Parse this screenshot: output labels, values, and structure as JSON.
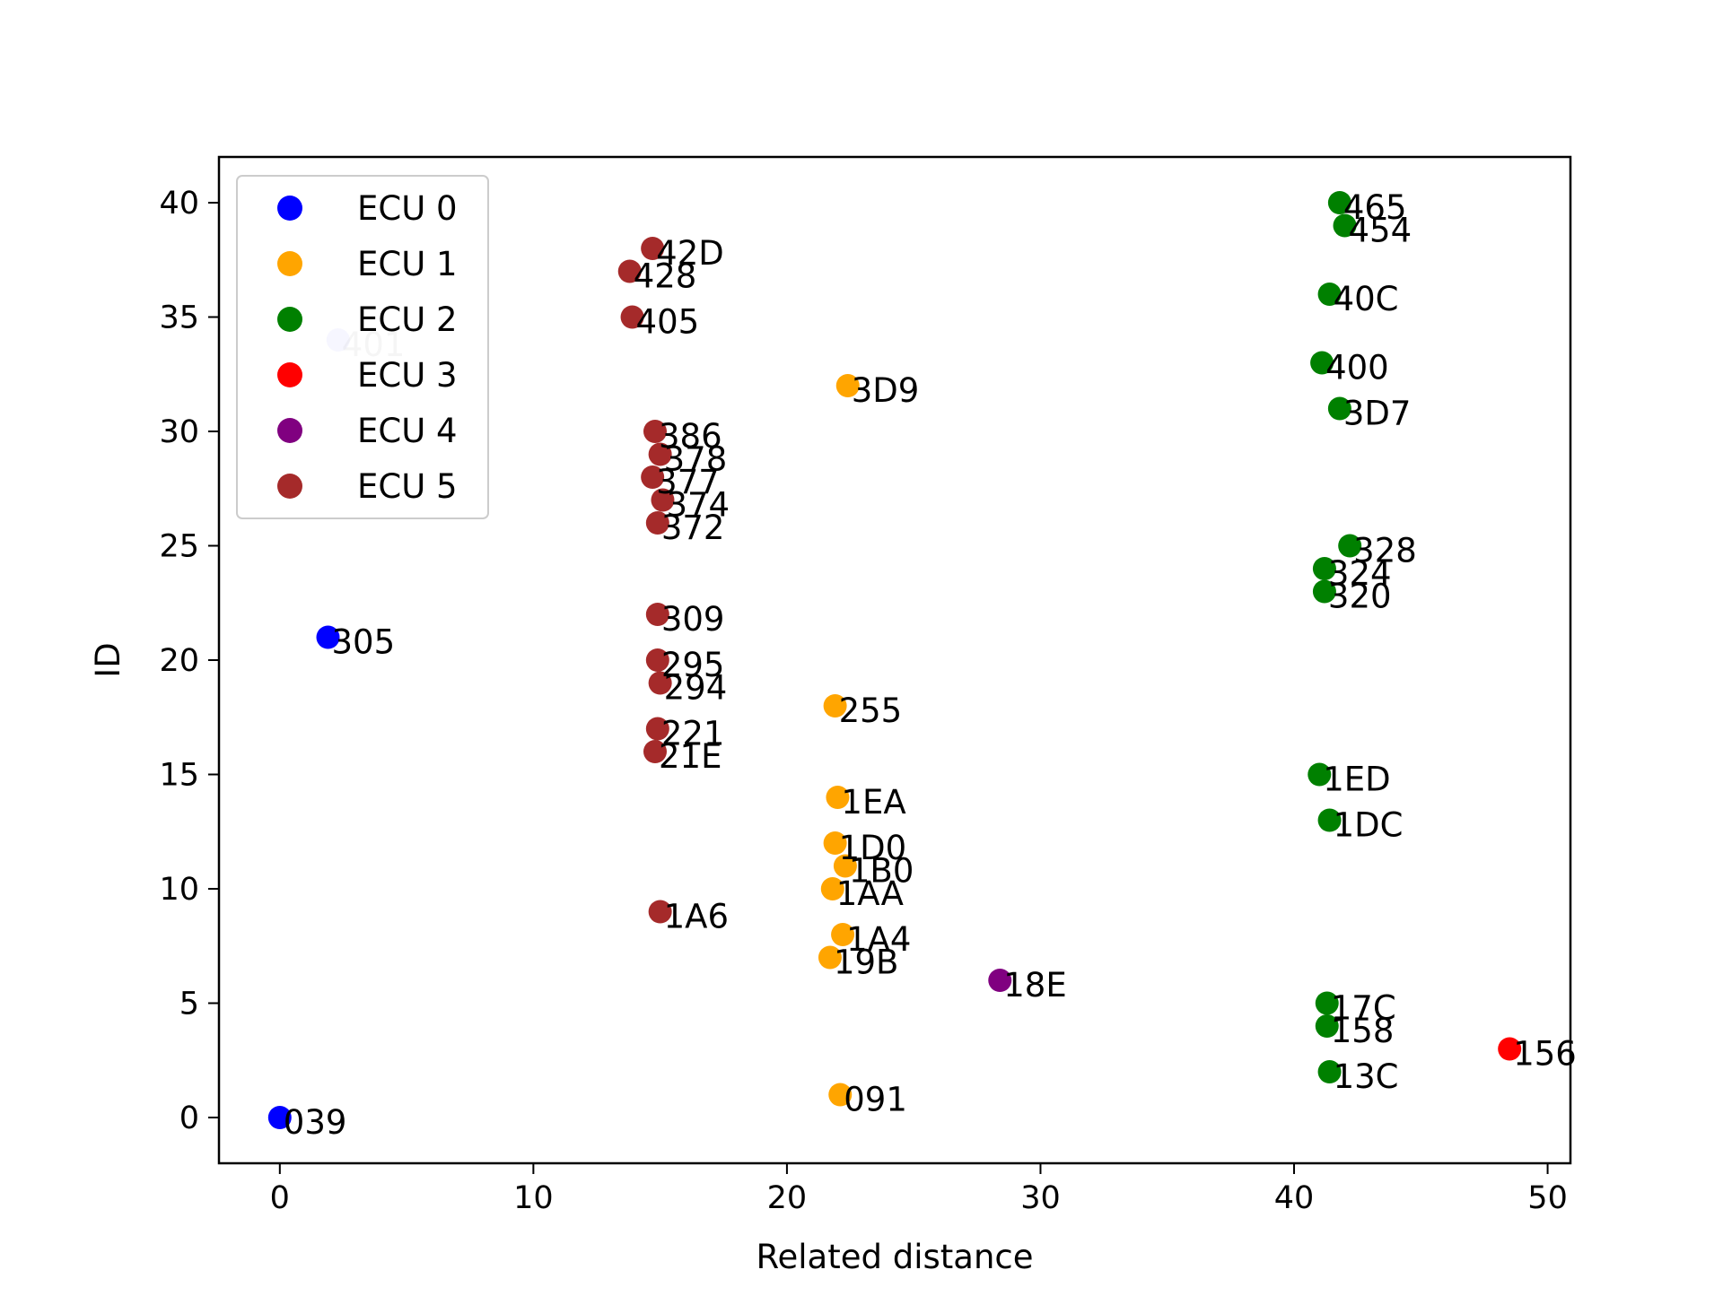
{
  "chart_data": {
    "type": "scatter",
    "title": "",
    "xlabel": "Related distance",
    "ylabel": "ID",
    "xlim": [
      -2.4,
      50.9
    ],
    "ylim": [
      -2,
      42
    ],
    "xticks": [
      "0",
      "10",
      "20",
      "30",
      "40",
      "50"
    ],
    "xtick_values": [
      0,
      10,
      20,
      30,
      40,
      50
    ],
    "yticks": [
      "0",
      "5",
      "10",
      "15",
      "20",
      "25",
      "30",
      "35",
      "40"
    ],
    "ytick_values": [
      0,
      5,
      10,
      15,
      20,
      25,
      30,
      35,
      40
    ],
    "grid": false,
    "legend_position": "top-left",
    "series": [
      {
        "name": "ECU 0",
        "color": "#0000ff",
        "points": [
          {
            "x": 0.0,
            "y": 0,
            "label": "039"
          },
          {
            "x": 1.9,
            "y": 21,
            "label": "305"
          },
          {
            "x": 2.3,
            "y": 34,
            "label": "401",
            "faded": true
          }
        ]
      },
      {
        "name": "ECU 1",
        "color": "#ffa500",
        "points": [
          {
            "x": 22.1,
            "y": 1,
            "label": "091"
          },
          {
            "x": 21.7,
            "y": 7,
            "label": "19B"
          },
          {
            "x": 22.2,
            "y": 8,
            "label": "1A4"
          },
          {
            "x": 21.8,
            "y": 10,
            "label": "1AA"
          },
          {
            "x": 22.3,
            "y": 11,
            "label": "1B0"
          },
          {
            "x": 21.9,
            "y": 12,
            "label": "1D0"
          },
          {
            "x": 22.0,
            "y": 14,
            "label": "1EA"
          },
          {
            "x": 21.9,
            "y": 18,
            "label": "255"
          },
          {
            "x": 22.4,
            "y": 32,
            "label": "3D9"
          }
        ]
      },
      {
        "name": "ECU 2",
        "color": "#008000",
        "points": [
          {
            "x": 41.4,
            "y": 2,
            "label": "13C"
          },
          {
            "x": 41.3,
            "y": 4,
            "label": "158"
          },
          {
            "x": 41.3,
            "y": 5,
            "label": "17C"
          },
          {
            "x": 41.4,
            "y": 13,
            "label": "1DC"
          },
          {
            "x": 41.0,
            "y": 15,
            "label": "1ED"
          },
          {
            "x": 41.2,
            "y": 23,
            "label": "320"
          },
          {
            "x": 41.2,
            "y": 24,
            "label": "324"
          },
          {
            "x": 42.2,
            "y": 25,
            "label": "328"
          },
          {
            "x": 41.8,
            "y": 31,
            "label": "3D7"
          },
          {
            "x": 41.1,
            "y": 33,
            "label": "400"
          },
          {
            "x": 41.4,
            "y": 36,
            "label": "40C"
          },
          {
            "x": 42.0,
            "y": 39,
            "label": "454"
          },
          {
            "x": 41.8,
            "y": 40,
            "label": "465"
          }
        ]
      },
      {
        "name": "ECU 3",
        "color": "#ff0000",
        "points": [
          {
            "x": 48.5,
            "y": 3,
            "label": "156"
          }
        ]
      },
      {
        "name": "ECU 4",
        "color": "#800080",
        "points": [
          {
            "x": 28.4,
            "y": 6,
            "label": "18E"
          }
        ]
      },
      {
        "name": "ECU 5",
        "color": "#a52a2a",
        "points": [
          {
            "x": 15.0,
            "y": 9,
            "label": "1A6"
          },
          {
            "x": 14.8,
            "y": 16,
            "label": "21E"
          },
          {
            "x": 14.9,
            "y": 17,
            "label": "221"
          },
          {
            "x": 15.0,
            "y": 19,
            "label": "294"
          },
          {
            "x": 14.9,
            "y": 20,
            "label": "295"
          },
          {
            "x": 14.9,
            "y": 22,
            "label": "309"
          },
          {
            "x": 14.9,
            "y": 26,
            "label": "372"
          },
          {
            "x": 15.1,
            "y": 27,
            "label": "374"
          },
          {
            "x": 14.7,
            "y": 28,
            "label": "377"
          },
          {
            "x": 15.0,
            "y": 29,
            "label": "378"
          },
          {
            "x": 14.8,
            "y": 30,
            "label": "386"
          },
          {
            "x": 13.9,
            "y": 35,
            "label": "405"
          },
          {
            "x": 13.8,
            "y": 37,
            "label": "428"
          },
          {
            "x": 14.7,
            "y": 38,
            "label": "42D"
          }
        ]
      }
    ]
  }
}
